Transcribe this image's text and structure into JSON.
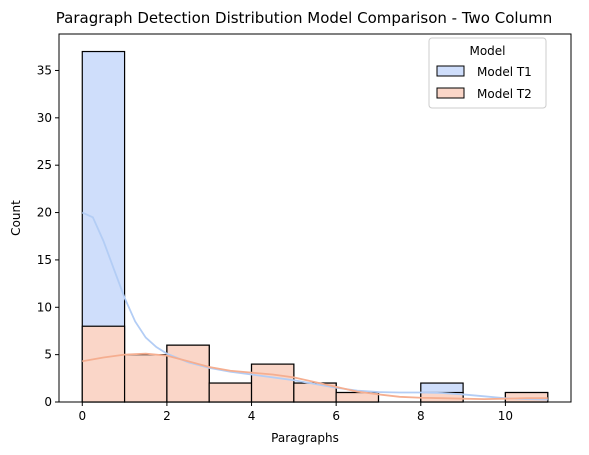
{
  "chart_data": {
    "type": "histogram",
    "title": "Paragraph Detection Distribution Model Comparison - Two Column",
    "xlabel": "Paragraphs",
    "ylabel": "Count",
    "xlim": [
      -0.55,
      11.55
    ],
    "ylim": [
      0,
      38.85
    ],
    "x_ticks": [
      0,
      2,
      4,
      6,
      8,
      10
    ],
    "y_ticks": [
      0,
      5,
      10,
      15,
      20,
      25,
      30,
      35
    ],
    "bin_edges": [
      0,
      1,
      2,
      3,
      4,
      5,
      6,
      7,
      8,
      9,
      10,
      11
    ],
    "grid": false,
    "legend": {
      "title": "Model",
      "placement": "top-right"
    },
    "series": [
      {
        "name": "Model T1",
        "color": "#b3cdf5",
        "fill": "#cfdefb",
        "counts": [
          37,
          5,
          6,
          2,
          4,
          2,
          1,
          0,
          2,
          0,
          1
        ],
        "kde": [
          [
            0,
            20
          ],
          [
            0.25,
            19.5
          ],
          [
            0.5,
            17
          ],
          [
            0.75,
            14
          ],
          [
            1,
            11
          ],
          [
            1.25,
            8.5
          ],
          [
            1.5,
            6.8
          ],
          [
            1.75,
            5.8
          ],
          [
            2,
            5.1
          ],
          [
            2.5,
            4.2
          ],
          [
            3,
            3.6
          ],
          [
            3.5,
            3.2
          ],
          [
            4,
            2.9
          ],
          [
            4.5,
            2.6
          ],
          [
            5,
            2.3
          ],
          [
            5.5,
            1.9
          ],
          [
            6,
            1.5
          ],
          [
            6.5,
            1.2
          ],
          [
            7,
            1.05
          ],
          [
            7.5,
            1.0
          ],
          [
            8,
            1.0
          ],
          [
            8.5,
            0.95
          ],
          [
            9,
            0.8
          ],
          [
            9.5,
            0.6
          ],
          [
            10,
            0.4
          ],
          [
            10.5,
            0.3
          ],
          [
            11,
            0.25
          ]
        ]
      },
      {
        "name": "Model T2",
        "color": "#f5ae90",
        "fill": "#fad6c8",
        "counts": [
          8,
          5,
          6,
          2,
          4,
          2,
          1,
          0,
          1,
          0,
          1
        ],
        "kde": [
          [
            0,
            4.3
          ],
          [
            0.5,
            4.7
          ],
          [
            1,
            5.0
          ],
          [
            1.5,
            5.1
          ],
          [
            2,
            4.9
          ],
          [
            2.5,
            4.3
          ],
          [
            3,
            3.7
          ],
          [
            3.5,
            3.3
          ],
          [
            4,
            3.1
          ],
          [
            4.5,
            2.9
          ],
          [
            5,
            2.6
          ],
          [
            5.5,
            2.1
          ],
          [
            6,
            1.6
          ],
          [
            6.5,
            1.1
          ],
          [
            7,
            0.8
          ],
          [
            7.5,
            0.55
          ],
          [
            8,
            0.45
          ],
          [
            8.5,
            0.4
          ],
          [
            9,
            0.35
          ],
          [
            9.5,
            0.3
          ],
          [
            10,
            0.35
          ],
          [
            10.5,
            0.4
          ],
          [
            11,
            0.4
          ]
        ]
      }
    ]
  }
}
